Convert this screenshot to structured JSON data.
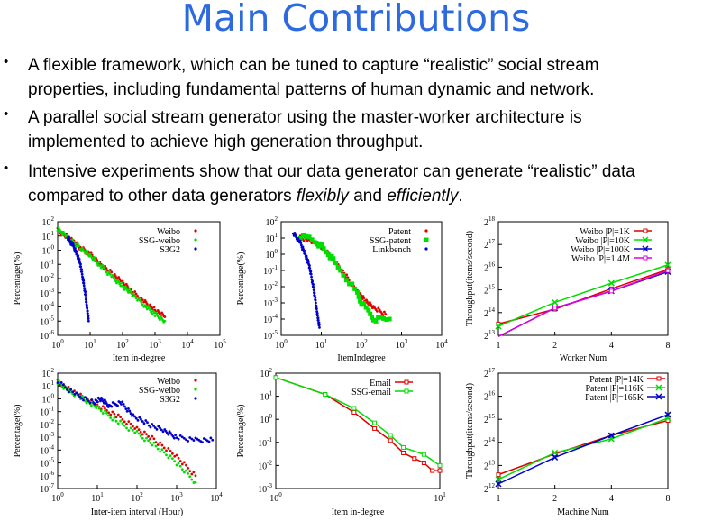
{
  "slide": {
    "title": "Main Contributions",
    "bullets": [
      {
        "marker": "•",
        "lines": [
          [
            {
              "t": "A flexible framework, which can be tuned to capture “realistic” social stream"
            }
          ],
          [
            {
              "t": "properties, including fundamental patterns of human dynamic and network."
            }
          ]
        ]
      },
      {
        "marker": "•",
        "lines": [
          [
            {
              "t": "A parallel social stream generator using the master-worker architecture is"
            }
          ],
          [
            {
              "t": "implemented to achieve high generation throughput."
            }
          ]
        ]
      },
      {
        "marker": "•",
        "lines": [
          [
            {
              "t": "Intensive experiments show that our data generator can generate “realistic” data"
            }
          ],
          [
            {
              "t": "compared to other data generators "
            },
            {
              "t": "flexibly",
              "i": true
            },
            {
              "t": " and "
            },
            {
              "t": "efficiently",
              "i": true
            },
            {
              "t": "."
            }
          ]
        ]
      }
    ]
  },
  "chart_data": [
    {
      "type": "scatter",
      "xlabel": "Item in-degree",
      "ylabel": "Percentage(%)",
      "xscale": "log",
      "yscale": "log",
      "xlim_exp": [
        0,
        5
      ],
      "ylim_exp": [
        -6,
        2
      ],
      "x_ticks": [
        0,
        1,
        2,
        3,
        4,
        5
      ],
      "y_ticks": [
        -6,
        -5,
        -4,
        -3,
        -2,
        -1,
        0,
        1,
        2
      ],
      "legend_position": "top-right",
      "series": [
        {
          "name": "Weibo",
          "color": "#e00000",
          "style": "dots",
          "points": [
            [
              1,
              25
            ],
            [
              2,
              8
            ],
            [
              3,
              4
            ],
            [
              5,
              1.5
            ],
            [
              10,
              0.5
            ],
            [
              20,
              0.12
            ],
            [
              50,
              0.02
            ],
            [
              100,
              0.005
            ],
            [
              200,
              0.0012
            ],
            [
              500,
              0.0002
            ],
            [
              1000,
              6e-05
            ],
            [
              2000,
              2e-05
            ]
          ]
        },
        {
          "name": "SSG-weibo",
          "color": "#00dd00",
          "style": "dots",
          "points": [
            [
              1,
              30
            ],
            [
              2,
              9
            ],
            [
              5,
              1.4
            ],
            [
              10,
              0.4
            ],
            [
              20,
              0.09
            ],
            [
              50,
              0.012
            ],
            [
              100,
              0.003
            ],
            [
              200,
              0.0008
            ],
            [
              500,
              0.00012
            ],
            [
              1000,
              3e-05
            ],
            [
              2000,
              1e-05
            ]
          ]
        },
        {
          "name": "S3G2",
          "color": "#0000cc",
          "style": "dots",
          "points": [
            [
              2,
              8
            ],
            [
              3,
              2
            ],
            [
              4,
              0.5
            ],
            [
              5,
              0.1
            ],
            [
              6,
              0.01
            ],
            [
              7,
              0.001
            ],
            [
              8,
              0.0001
            ],
            [
              9,
              1e-05
            ]
          ]
        }
      ]
    },
    {
      "type": "scatter",
      "xlabel": "ItemIndegree",
      "ylabel": "Percentage(%)",
      "xscale": "log",
      "yscale": "log",
      "xlim_exp": [
        0,
        4
      ],
      "ylim_exp": [
        -5,
        2
      ],
      "x_ticks": [
        0,
        1,
        2,
        3,
        4
      ],
      "y_ticks": [
        -5,
        -4,
        -3,
        -2,
        -1,
        0,
        1,
        2
      ],
      "legend_position": "top-right",
      "series": [
        {
          "name": "Patent",
          "color": "#e00000",
          "style": "dots",
          "points": [
            [
              3,
              10
            ],
            [
              5,
              8
            ],
            [
              10,
              3
            ],
            [
              20,
              0.5
            ],
            [
              40,
              0.05
            ],
            [
              80,
              0.005
            ],
            [
              120,
              0.0015
            ],
            [
              200,
              0.0005
            ],
            [
              400,
              0.0002
            ]
          ]
        },
        {
          "name": "SSG-patent",
          "color": "#00dd00",
          "style": "squares",
          "points": [
            [
              3,
              12
            ],
            [
              5,
              10
            ],
            [
              8,
              5
            ],
            [
              10,
              3
            ],
            [
              15,
              1
            ],
            [
              20,
              0.4
            ],
            [
              30,
              0.1
            ],
            [
              50,
              0.02
            ],
            [
              80,
              0.004
            ],
            [
              100,
              0.001
            ],
            [
              150,
              0.0003
            ],
            [
              200,
              0.0001
            ],
            [
              300,
              0.0001
            ],
            [
              500,
              0.0001
            ]
          ]
        },
        {
          "name": "Linkbench",
          "color": "#0000cc",
          "style": "dots",
          "points": [
            [
              2,
              20
            ],
            [
              3,
              5
            ],
            [
              4,
              1
            ],
            [
              5,
              0.2
            ],
            [
              6,
              0.02
            ],
            [
              7,
              0.002
            ],
            [
              8,
              0.0002
            ],
            [
              9,
              3e-05
            ]
          ]
        }
      ]
    },
    {
      "type": "line",
      "xlabel": "Worker Num",
      "ylabel": "Throughput(items/second)",
      "xscale": "log2",
      "yscale": "log2",
      "xlim_exp": [
        0,
        3
      ],
      "ylim_exp": [
        13,
        18
      ],
      "x_ticks": [
        1,
        2,
        4,
        8
      ],
      "y_ticks": [
        13,
        14,
        15,
        16,
        17,
        18
      ],
      "legend_position": "top",
      "series": [
        {
          "name": "Weibo |P|=1K",
          "color": "#e00000",
          "marker": "square",
          "points": [
            [
              1,
              13.5
            ],
            [
              2,
              14.15
            ],
            [
              4,
              15.05
            ],
            [
              8,
              15.9
            ]
          ]
        },
        {
          "name": "Weibo |P|=10K",
          "color": "#00dd00",
          "marker": "x",
          "points": [
            [
              1,
              13.4
            ],
            [
              2,
              14.45
            ],
            [
              4,
              15.3
            ],
            [
              8,
              16.1
            ]
          ]
        },
        {
          "name": "Weibo |P|=100K",
          "color": "#0000cc",
          "marker": "x",
          "points": [
            [
              1,
              12.95
            ],
            [
              2,
              14.2
            ],
            [
              4,
              14.95
            ],
            [
              8,
              15.8
            ]
          ]
        },
        {
          "name": "Weibo |P|=1.4M",
          "color": "#e000e0",
          "marker": "square",
          "points": [
            [
              1,
              12.95
            ],
            [
              2,
              14.2
            ],
            [
              4,
              14.95
            ],
            [
              8,
              15.85
            ]
          ]
        }
      ]
    },
    {
      "type": "scatter",
      "xlabel": "Inter-item interval (Hour)",
      "ylabel": "Percentage(%)",
      "xscale": "log",
      "yscale": "log",
      "xlim_exp": [
        0,
        4
      ],
      "ylim_exp": [
        -7,
        2
      ],
      "x_ticks": [
        0,
        1,
        2,
        3,
        4
      ],
      "y_ticks": [
        -7,
        -6,
        -5,
        -4,
        -3,
        -2,
        -1,
        0,
        1,
        2
      ],
      "legend_position": "top-right",
      "series": [
        {
          "name": "Weibo",
          "color": "#e00000",
          "style": "dots",
          "points": [
            [
              1,
              20
            ],
            [
              2,
              5
            ],
            [
              5,
              1
            ],
            [
              10,
              0.3
            ],
            [
              30,
              0.05
            ],
            [
              100,
              0.005
            ],
            [
              300,
              0.0005
            ],
            [
              1000,
              3e-05
            ],
            [
              3000,
              1e-06
            ]
          ]
        },
        {
          "name": "SSG-weibo",
          "color": "#00dd00",
          "style": "dots",
          "points": [
            [
              1,
              20
            ],
            [
              2,
              4
            ],
            [
              5,
              0.8
            ],
            [
              10,
              0.2
            ],
            [
              30,
              0.02
            ],
            [
              100,
              0.002
            ],
            [
              300,
              0.0002
            ],
            [
              1000,
              1e-05
            ],
            [
              3000,
              3e-07
            ]
          ]
        },
        {
          "name": "S3G2",
          "color": "#0000cc",
          "style": "dots",
          "points": [
            [
              1,
              20
            ],
            [
              3,
              2
            ],
            [
              8,
              0.5
            ],
            [
              12,
              1
            ],
            [
              20,
              0.3
            ],
            [
              40,
              0.5
            ],
            [
              80,
              0.05
            ],
            [
              200,
              0.01
            ],
            [
              500,
              0.003
            ],
            [
              1000,
              0.001
            ],
            [
              3000,
              0.0006
            ],
            [
              8000,
              0.0006
            ]
          ]
        }
      ]
    },
    {
      "type": "line",
      "xlabel": "Item in-degree",
      "ylabel": "Percentage(%)",
      "xscale": "log",
      "yscale": "log",
      "xlim_exp": [
        0,
        1
      ],
      "ylim_exp": [
        -3,
        2
      ],
      "x_ticks": [
        0,
        1
      ],
      "y_ticks": [
        -3,
        -2,
        -1,
        0,
        1,
        2
      ],
      "legend_position": "top-right",
      "series": [
        {
          "name": "Email",
          "color": "#e00000",
          "marker": "square",
          "points": [
            [
              1,
              65
            ],
            [
              2,
              12
            ],
            [
              3,
              2
            ],
            [
              4,
              0.4
            ],
            [
              5,
              0.12
            ],
            [
              6,
              0.035
            ],
            [
              7,
              0.02
            ],
            [
              8,
              0.013
            ],
            [
              9,
              0.006
            ],
            [
              10,
              0.006
            ]
          ]
        },
        {
          "name": "SSG-email",
          "color": "#00dd00",
          "marker": "square",
          "points": [
            [
              1,
              65
            ],
            [
              2,
              12
            ],
            [
              3,
              3
            ],
            [
              4,
              0.7
            ],
            [
              5,
              0.2
            ],
            [
              6,
              0.06
            ],
            [
              8,
              0.03
            ],
            [
              10,
              0.01
            ]
          ]
        }
      ]
    },
    {
      "type": "line",
      "xlabel": "Machine Num",
      "ylabel": "Throughput(items/second)",
      "xscale": "log2",
      "yscale": "log2",
      "xlim_exp": [
        0,
        3
      ],
      "ylim_exp": [
        12,
        17
      ],
      "x_ticks": [
        1,
        2,
        4,
        8
      ],
      "y_ticks": [
        12,
        13,
        14,
        15,
        16,
        17
      ],
      "legend_position": "top",
      "series": [
        {
          "name": "Patent |P|=14K",
          "color": "#e00000",
          "marker": "square",
          "points": [
            [
              1,
              12.6
            ],
            [
              2,
              13.5
            ],
            [
              4,
              14.3
            ],
            [
              8,
              14.95
            ]
          ]
        },
        {
          "name": "Patent |P|=116K",
          "color": "#00dd00",
          "marker": "x",
          "points": [
            [
              1,
              12.4
            ],
            [
              2,
              13.55
            ],
            [
              4,
              14.15
            ],
            [
              8,
              15.05
            ]
          ]
        },
        {
          "name": "Patent |P|=165K",
          "color": "#0000cc",
          "marker": "x",
          "points": [
            [
              1,
              12.2
            ],
            [
              2,
              13.35
            ],
            [
              4,
              14.3
            ],
            [
              8,
              15.2
            ]
          ]
        }
      ]
    }
  ]
}
